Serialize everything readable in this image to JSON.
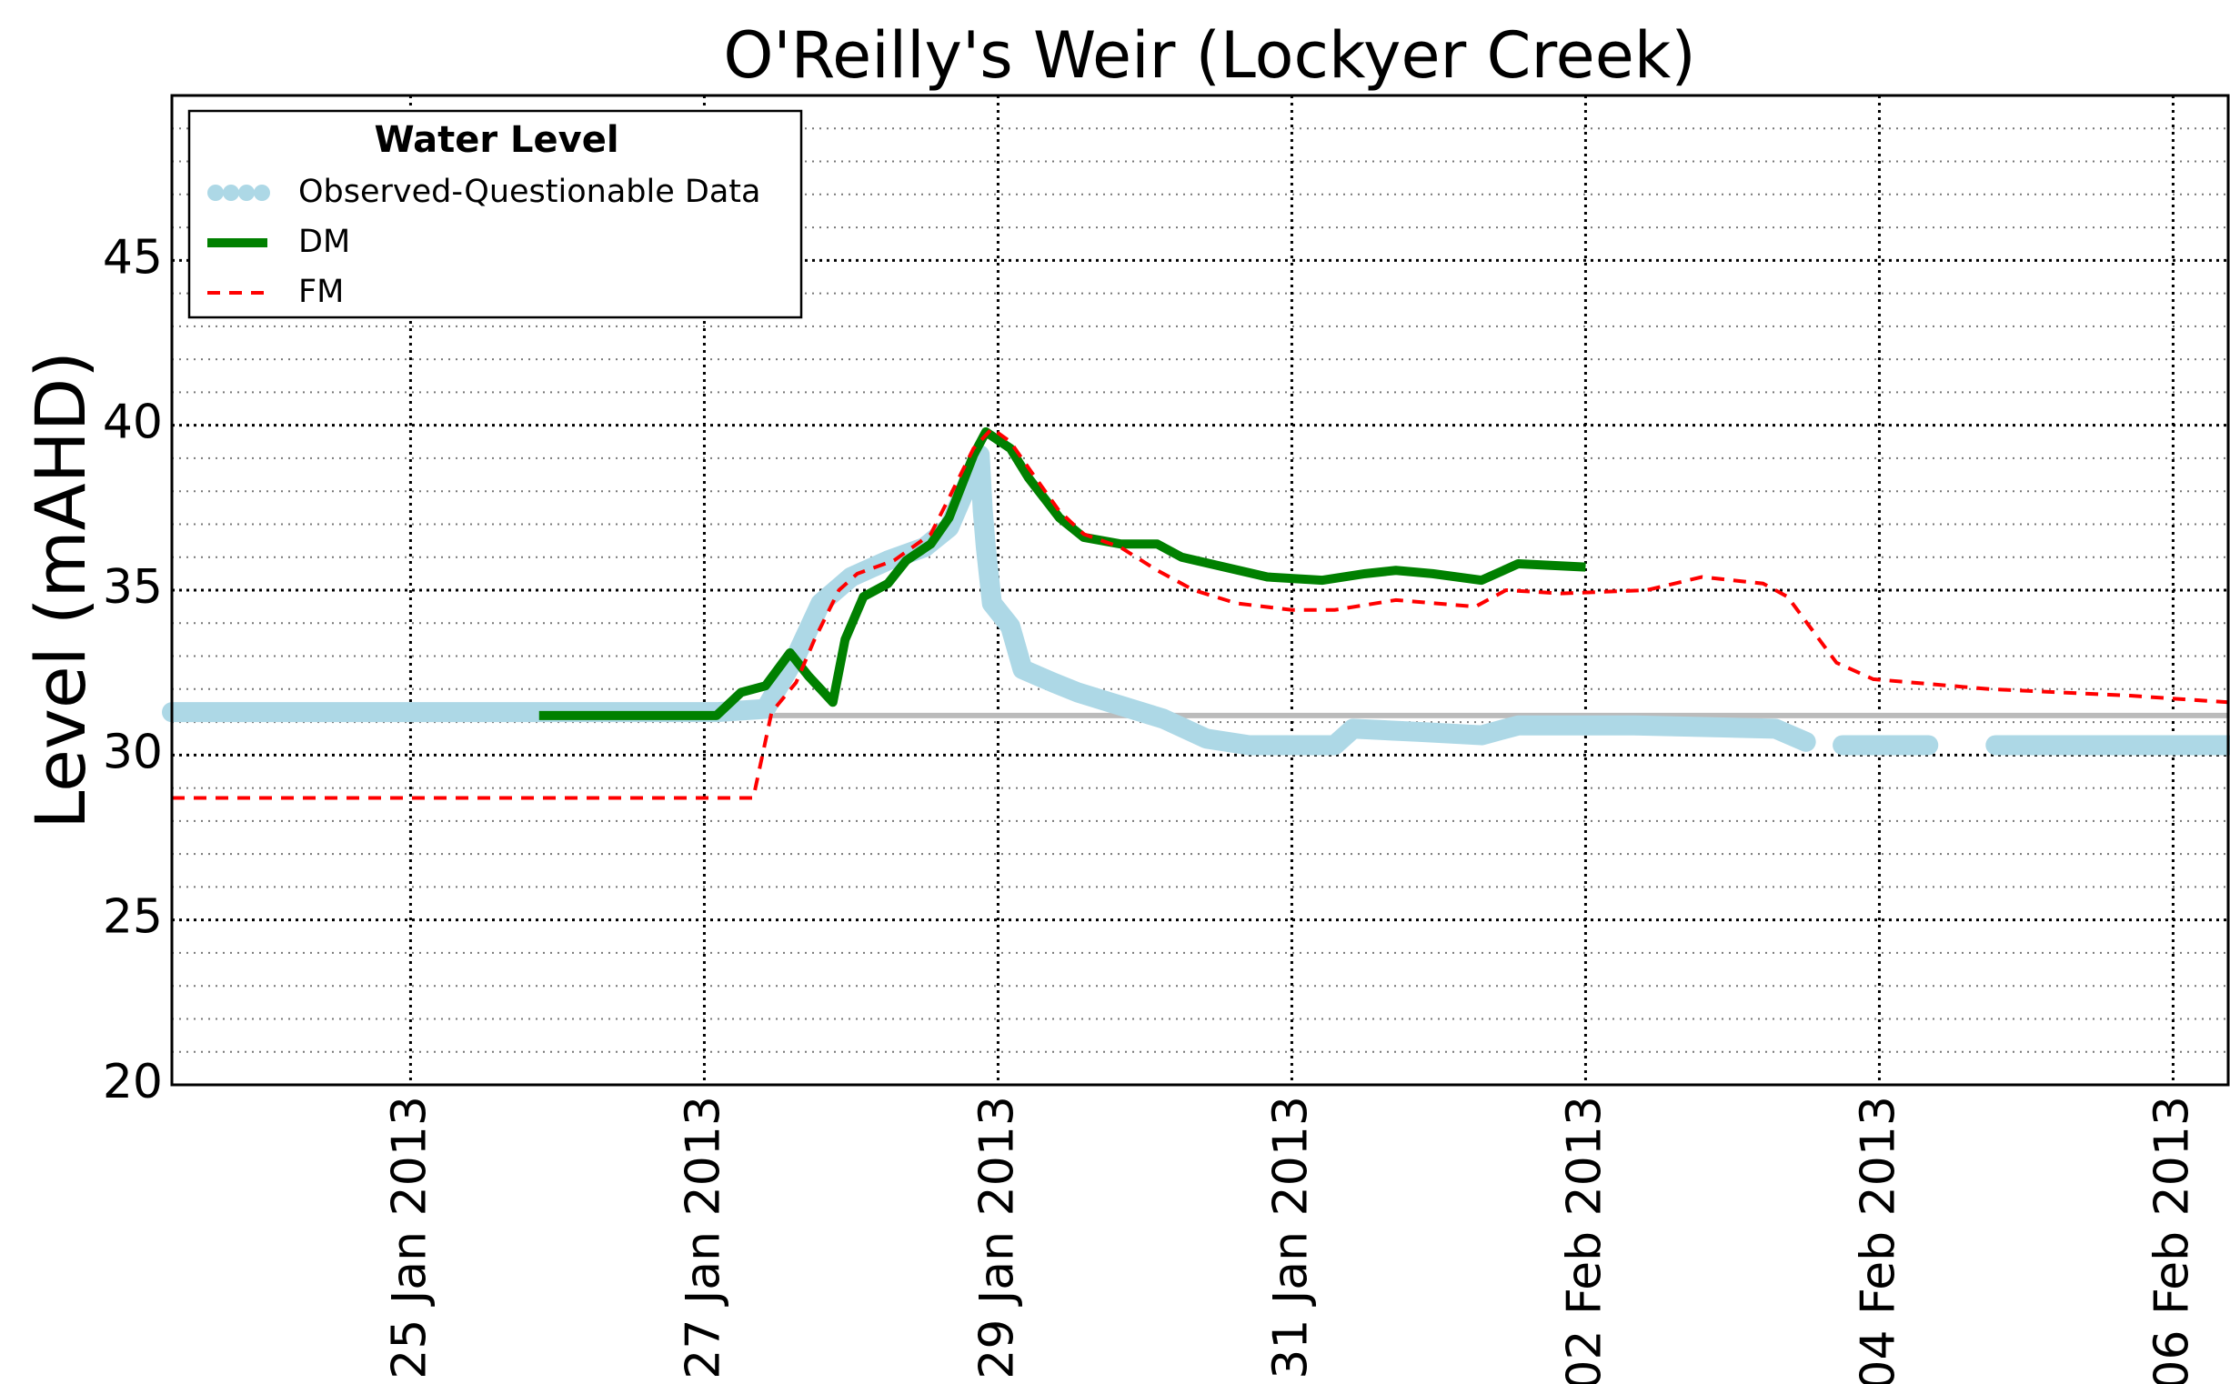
{
  "chart_data": {
    "type": "line",
    "title": "O'Reilly's Weir (Lockyer Creek)",
    "y_label": "Level (mAHD)",
    "legend_title": "Water Level",
    "legend": "upper left",
    "grid": true,
    "xlim": [
      "2013-01-23 09:00",
      "2013-02-06 09:00"
    ],
    "xticks": [
      {
        "value": "2013-01-25 00:00",
        "label": "25 Jan 2013"
      },
      {
        "value": "2013-01-27 00:00",
        "label": "27 Jan 2013"
      },
      {
        "value": "2013-01-29 00:00",
        "label": "29 Jan 2013"
      },
      {
        "value": "2013-01-31 00:00",
        "label": "31 Jan 2013"
      },
      {
        "value": "2013-02-02 00:00",
        "label": "02 Feb 2013"
      },
      {
        "value": "2013-02-04 00:00",
        "label": "04 Feb 2013"
      },
      {
        "value": "2013-02-06 00:00",
        "label": "06 Feb 2013"
      }
    ],
    "ylim": [
      20,
      50
    ],
    "yticks": [
      20,
      25,
      30,
      35,
      40,
      45
    ],
    "yticks_minor": [
      21,
      22,
      23,
      24,
      26,
      27,
      28,
      29,
      31,
      32,
      33,
      34,
      36,
      37,
      38,
      39,
      41,
      42,
      43,
      44,
      46,
      47,
      48,
      49
    ],
    "reference_line": {
      "value": 31.2,
      "color": "#bbbbbb"
    },
    "series": [
      {
        "name": "Observed-Questionable Data",
        "color": "#add8e6",
        "style": "dots",
        "x": [
          "2013-01-23 09:00",
          "2013-01-24 00:00",
          "2013-01-24 12:00",
          "2013-01-25 00:00",
          "2013-01-25 12:00",
          "2013-01-25 19:00",
          "2013-01-27 02:00",
          "2013-01-27 10:00",
          "2013-01-27 15:00",
          "2013-01-27 19:00",
          "2013-01-28 00:00",
          "2013-01-28 06:00",
          "2013-01-28 12:00",
          "2013-01-28 16:00",
          "2013-01-28 19:00",
          "2013-01-28 21:00",
          "2013-01-28 21:30",
          "2013-01-28 22:00",
          "2013-01-28 23:00",
          "2013-01-29 02:00",
          "2013-01-29 04:00",
          "2013-01-29 09:00",
          "2013-01-29 13:00",
          "2013-01-29 20:00",
          "2013-01-30 03:00",
          "2013-01-30 10:00",
          "2013-01-30 17:00",
          "2013-01-31 07:00",
          "2013-01-31 10:00",
          "2013-01-31 21:00",
          "2013-02-01 07:00",
          "2013-02-01 13:00",
          "2013-02-02 08:00",
          "2013-02-03 07:00",
          "2013-02-03 12:00",
          "2013-02-03 15:00",
          "2013-02-03 18:00",
          "2013-02-04 08:00",
          "2013-02-04 14:00",
          "2013-02-04 19:00",
          "2013-02-06 09:00"
        ],
        "values": [
          31.3,
          31.3,
          31.3,
          31.3,
          31.3,
          31.3,
          31.3,
          31.4,
          33.0,
          34.6,
          35.4,
          35.9,
          36.3,
          36.9,
          38.2,
          39.1,
          37.4,
          36.3,
          34.6,
          33.9,
          32.6,
          32.2,
          31.9,
          31.5,
          31.1,
          30.5,
          30.3,
          30.3,
          30.8,
          30.7,
          30.6,
          30.9,
          30.9,
          30.8,
          30.4,
          null,
          30.3,
          30.3,
          null,
          30.3,
          30.3
        ]
      },
      {
        "name": "DM",
        "color": "#008000",
        "style": "solid",
        "x": [
          "2013-01-25 21:00",
          "2013-01-27 02:00",
          "2013-01-27 06:00",
          "2013-01-27 10:00",
          "2013-01-27 14:00",
          "2013-01-27 17:00",
          "2013-01-27 21:00",
          "2013-01-27 23:00",
          "2013-01-28 02:00",
          "2013-01-28 06:00",
          "2013-01-28 09:00",
          "2013-01-28 13:00",
          "2013-01-28 16:00",
          "2013-01-28 20:00",
          "2013-01-28 22:00",
          "2013-01-29 02:00",
          "2013-01-29 05:00",
          "2013-01-29 10:00",
          "2013-01-29 14:00",
          "2013-01-29 20:00",
          "2013-01-30 02:00",
          "2013-01-30 06:00",
          "2013-01-30 13:00",
          "2013-01-30 20:00",
          "2013-01-31 05:00",
          "2013-01-31 12:00",
          "2013-01-31 17:00",
          "2013-01-31 23:00",
          "2013-02-01 07:00",
          "2013-02-01 13:00",
          "2013-02-02 00:00"
        ],
        "values": [
          31.2,
          31.2,
          31.9,
          32.1,
          33.1,
          32.4,
          31.6,
          33.5,
          34.8,
          35.2,
          35.9,
          36.4,
          37.2,
          39.1,
          39.8,
          39.3,
          38.4,
          37.2,
          36.6,
          36.4,
          36.4,
          36.0,
          35.7,
          35.4,
          35.3,
          35.5,
          35.6,
          35.5,
          35.3,
          35.8,
          35.7
        ]
      },
      {
        "name": "FM",
        "color": "#ff0000",
        "style": "dashed",
        "x": [
          "2013-01-23 09:00",
          "2013-01-27 08:00",
          "2013-01-27 11:00",
          "2013-01-27 15:00",
          "2013-01-27 18:00",
          "2013-01-27 22:00",
          "2013-01-28 01:00",
          "2013-01-28 07:00",
          "2013-01-28 13:00",
          "2013-01-28 16:00",
          "2013-01-28 20:00",
          "2013-01-28 23:00",
          "2013-01-29 02:00",
          "2013-01-29 05:00",
          "2013-01-29 10:00",
          "2013-01-29 14:00",
          "2013-01-29 20:00",
          "2013-01-30 02:00",
          "2013-01-30 08:00",
          "2013-01-30 15:00",
          "2013-01-31 00:00",
          "2013-01-31 07:00",
          "2013-01-31 17:00",
          "2013-02-01 06:00",
          "2013-02-01 11:00",
          "2013-02-01 20:00",
          "2013-02-02 10:00",
          "2013-02-02 19:00",
          "2013-02-03 05:00",
          "2013-02-03 09:00",
          "2013-02-03 17:00",
          "2013-02-03 23:00",
          "2013-02-04 18:00",
          "2013-02-05 17:00",
          "2013-02-06 09:00"
        ],
        "values": [
          28.7,
          28.7,
          31.3,
          32.2,
          33.5,
          35.0,
          35.5,
          35.9,
          36.7,
          37.8,
          39.3,
          39.9,
          39.5,
          38.7,
          37.4,
          36.7,
          36.3,
          35.6,
          35.0,
          34.6,
          34.4,
          34.4,
          34.7,
          34.5,
          35.0,
          34.9,
          35.0,
          35.4,
          35.2,
          34.8,
          32.8,
          32.3,
          32.0,
          31.8,
          31.6
        ]
      }
    ]
  }
}
